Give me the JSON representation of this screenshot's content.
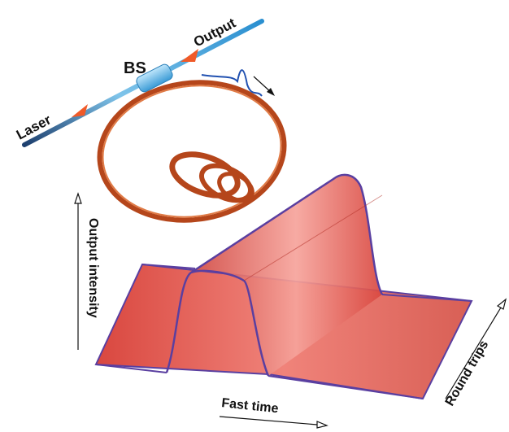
{
  "labels": {
    "laser": "Laser",
    "bs": "BS",
    "output": "Output",
    "output_intensity": "Output intensity",
    "fast_time": "Fast time",
    "round_trips": "Round trips"
  }
}
